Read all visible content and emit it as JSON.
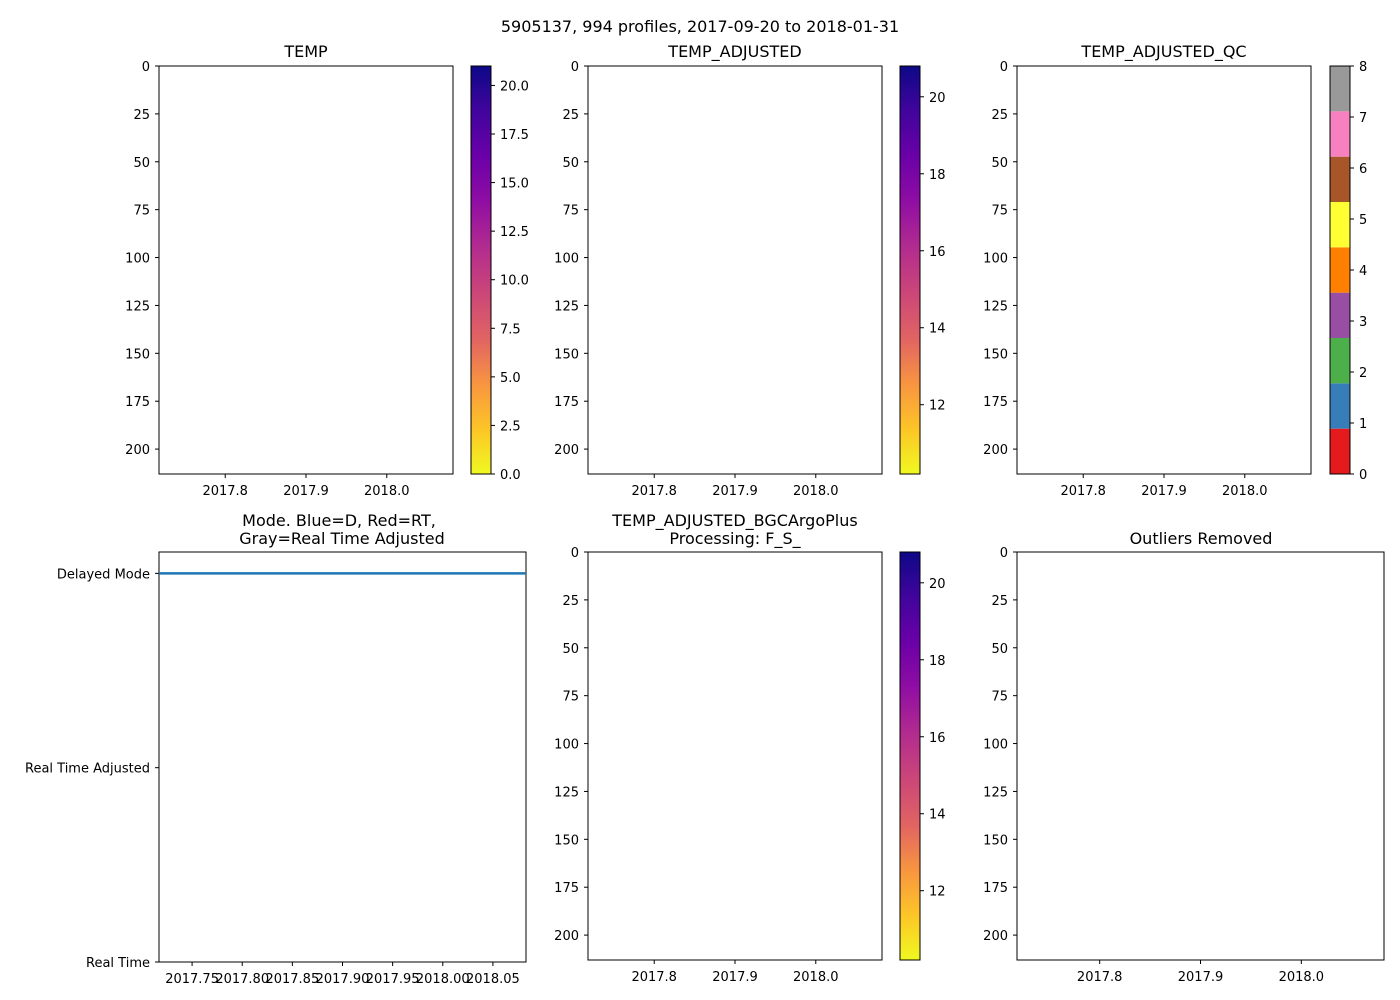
{
  "figure": {
    "title": "5905137, 994 profiles, 2017-09-20 to 2018-01-31"
  },
  "chart_data": [
    {
      "type": "heatmap",
      "id": "temp",
      "title": "TEMP",
      "x_ticks": [
        "2017.8",
        "2017.9",
        "2018.0"
      ],
      "x_tick_values": [
        2017.8,
        2017.9,
        2018.0
      ],
      "xlim": [
        2017.718,
        2018.082
      ],
      "y_ticks": [
        "0",
        "25",
        "50",
        "75",
        "100",
        "125",
        "150",
        "175",
        "200"
      ],
      "y_tick_values": [
        0,
        25,
        50,
        75,
        100,
        125,
        150,
        175,
        200
      ],
      "ylim": [
        213,
        0
      ],
      "colorbar": {
        "cmap": "plasma_r",
        "range": [
          0,
          21
        ],
        "ticks": [
          "0.0",
          "2.5",
          "5.0",
          "7.5",
          "10.0",
          "12.5",
          "15.0",
          "17.5",
          "20.0"
        ],
        "tick_values": [
          0,
          2.5,
          5,
          7.5,
          10,
          12.5,
          15,
          17.5,
          20
        ]
      }
    },
    {
      "type": "heatmap",
      "id": "temp_adjusted",
      "title": "TEMP_ADJUSTED",
      "x_ticks": [
        "2017.8",
        "2017.9",
        "2018.0"
      ],
      "x_tick_values": [
        2017.8,
        2017.9,
        2018.0
      ],
      "xlim": [
        2017.718,
        2018.082
      ],
      "y_ticks": [
        "0",
        "25",
        "50",
        "75",
        "100",
        "125",
        "150",
        "175",
        "200"
      ],
      "y_tick_values": [
        0,
        25,
        50,
        75,
        100,
        125,
        150,
        175,
        200
      ],
      "ylim": [
        213,
        0
      ],
      "colorbar": {
        "cmap": "plasma_r",
        "range": [
          10.2,
          20.8
        ],
        "ticks": [
          "12",
          "14",
          "16",
          "18",
          "20"
        ],
        "tick_values": [
          12,
          14,
          16,
          18,
          20
        ]
      }
    },
    {
      "type": "heatmap",
      "id": "temp_adjusted_qc",
      "title": "TEMP_ADJUSTED_QC",
      "x_ticks": [
        "2017.8",
        "2017.9",
        "2018.0"
      ],
      "x_tick_values": [
        2017.8,
        2017.9,
        2018.0
      ],
      "xlim": [
        2017.718,
        2018.082
      ],
      "y_ticks": [
        "0",
        "25",
        "50",
        "75",
        "100",
        "125",
        "150",
        "175",
        "200"
      ],
      "y_tick_values": [
        0,
        25,
        50,
        75,
        100,
        125,
        150,
        175,
        200
      ],
      "ylim": [
        213,
        0
      ],
      "colorbar": {
        "cmap": "qc_categorical",
        "range": [
          0,
          8
        ],
        "ticks": [
          "0",
          "1",
          "2",
          "3",
          "4",
          "5",
          "6",
          "7",
          "8"
        ],
        "tick_values": [
          0,
          1,
          2,
          3,
          4,
          5,
          6,
          7,
          8
        ],
        "category_colors": [
          "#e41a1c",
          "#377eb8",
          "#4daf4a",
          "#984ea3",
          "#ff7f00",
          "#ffff33",
          "#a65628",
          "#f781bf",
          "#999999"
        ]
      }
    },
    {
      "type": "line",
      "id": "mode",
      "title": "Mode. Blue=D, Red=RT,",
      "title_line2": "Gray=Real Time Adjusted",
      "x_ticks": [
        "2017.75",
        "2017.80",
        "2017.85",
        "2017.90",
        "2017.95",
        "2018.00",
        "2018.05"
      ],
      "x_tick_values": [
        2017.75,
        2017.8,
        2017.85,
        2017.9,
        2017.95,
        2018.0,
        2018.05
      ],
      "xlim": [
        2017.717,
        2018.083
      ],
      "y_ticks": [
        "Real Time",
        "Real Time Adjusted",
        "Delayed Mode"
      ],
      "y_tick_values": [
        0,
        1,
        2
      ],
      "ylim": [
        0,
        2.11
      ],
      "series": [
        {
          "name": "Delayed Mode",
          "color": "#1f77b4",
          "x": [
            2017.717,
            2018.083
          ],
          "y": [
            2,
            2
          ]
        }
      ]
    },
    {
      "type": "heatmap",
      "id": "bgc_plus",
      "title": "TEMP_ADJUSTED_BGCArgoPlus",
      "title_line2": "Processing: F_S_",
      "x_ticks": [
        "2017.8",
        "2017.9",
        "2018.0"
      ],
      "x_tick_values": [
        2017.8,
        2017.9,
        2018.0
      ],
      "xlim": [
        2017.718,
        2018.082
      ],
      "y_ticks": [
        "0",
        "25",
        "50",
        "75",
        "100",
        "125",
        "150",
        "175",
        "200"
      ],
      "y_tick_values": [
        0,
        25,
        50,
        75,
        100,
        125,
        150,
        175,
        200
      ],
      "ylim": [
        213,
        0
      ],
      "colorbar": {
        "cmap": "plasma_r",
        "range": [
          10.2,
          20.8
        ],
        "ticks": [
          "12",
          "14",
          "16",
          "18",
          "20"
        ],
        "tick_values": [
          12,
          14,
          16,
          18,
          20
        ]
      }
    },
    {
      "type": "heatmap",
      "id": "outliers",
      "title": "Outliers Removed",
      "x_ticks": [
        "2017.8",
        "2017.9",
        "2018.0"
      ],
      "x_tick_values": [
        2017.8,
        2017.9,
        2018.0
      ],
      "xlim": [
        2017.718,
        2018.082
      ],
      "y_ticks": [
        "0",
        "25",
        "50",
        "75",
        "100",
        "125",
        "150",
        "175",
        "200"
      ],
      "y_tick_values": [
        0,
        25,
        50,
        75,
        100,
        125,
        150,
        175,
        200
      ],
      "ylim": [
        213,
        0
      ]
    }
  ]
}
